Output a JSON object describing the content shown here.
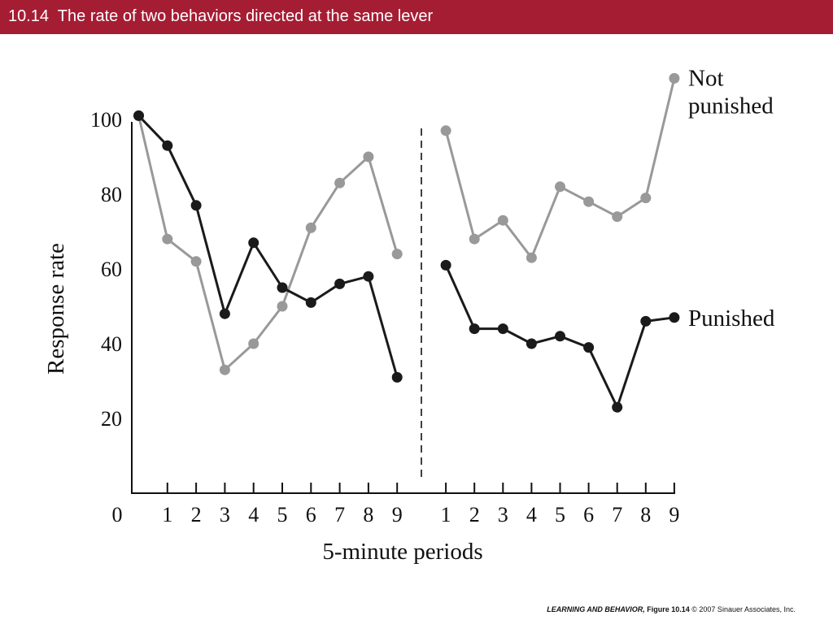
{
  "slide": {
    "title": "10.14  The rate of two behaviors directed at the same lever",
    "title_bar_color": "#a51d33"
  },
  "footer": {
    "book": "LEARNING AND BEHAVIOR,",
    "figure": "Figure 10.14",
    "copyright": "© 2007 Sinauer Associates, Inc."
  },
  "chart_data": {
    "type": "line",
    "xlabel": "5-minute periods",
    "ylabel": "Response rate",
    "y_ticks": [
      20,
      40,
      60,
      80,
      100
    ],
    "ylim": [
      0,
      100
    ],
    "origin_label": "0",
    "grid": false,
    "panels": [
      {
        "x_ticks": [
          "1",
          "2",
          "3",
          "4",
          "5",
          "6",
          "7",
          "8",
          "9"
        ],
        "series": [
          {
            "key": "punished",
            "color": "#1a1a1a",
            "x": [
              0,
              1,
              2,
              3,
              4,
              5,
              6,
              7,
              8,
              9
            ],
            "values": [
              101,
              93,
              77,
              48,
              67,
              55,
              51,
              56,
              58,
              31
            ]
          },
          {
            "key": "not_punished",
            "color": "#999999",
            "x": [
              0,
              1,
              2,
              3,
              4,
              5,
              6,
              7,
              8,
              9
            ],
            "values": [
              101,
              68,
              62,
              33,
              40,
              50,
              71,
              83,
              90,
              64
            ]
          }
        ]
      },
      {
        "x_ticks": [
          "1",
          "2",
          "3",
          "4",
          "5",
          "6",
          "7",
          "8",
          "9"
        ],
        "series": [
          {
            "key": "not_punished",
            "name": "Not\npunished",
            "color": "#999999",
            "x": [
              1,
              2,
              3,
              4,
              5,
              6,
              7,
              8,
              9
            ],
            "values": [
              97,
              68,
              73,
              63,
              82,
              78,
              74,
              79,
              111
            ]
          },
          {
            "key": "punished",
            "name": "Punished",
            "color": "#1a1a1a",
            "x": [
              1,
              2,
              3,
              4,
              5,
              6,
              7,
              8,
              9
            ],
            "values": [
              61,
              44,
              44,
              40,
              42,
              39,
              23,
              46,
              47
            ]
          }
        ]
      }
    ],
    "divider": "dashed vertical line between panels"
  }
}
